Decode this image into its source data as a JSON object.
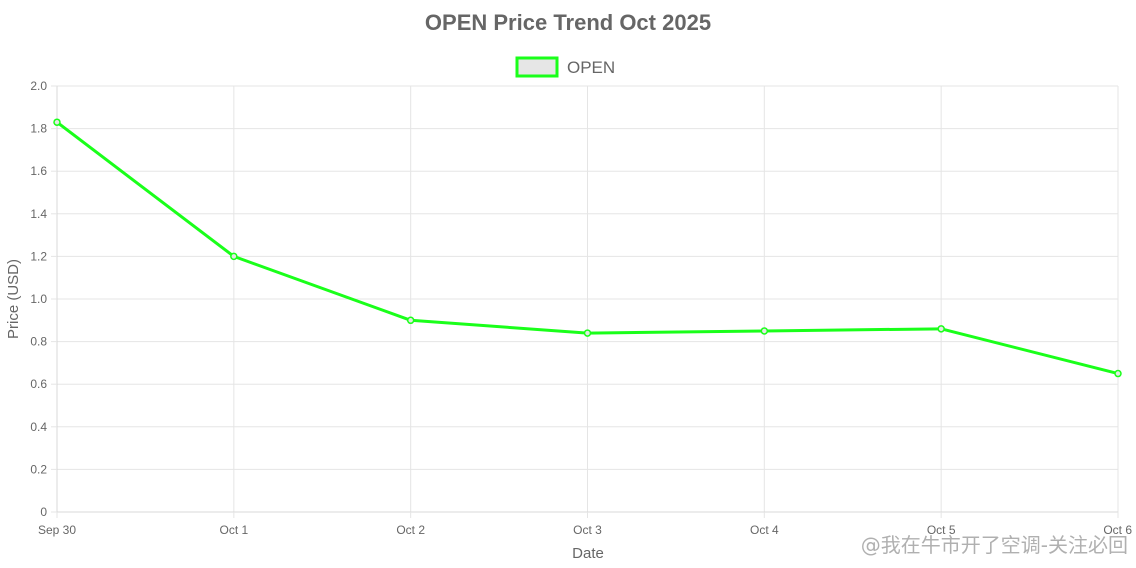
{
  "chart_data": {
    "type": "line",
    "title": "OPEN Price Trend Oct 2025",
    "xlabel": "Date",
    "ylabel": "Price (USD)",
    "categories": [
      "Sep 30",
      "Oct 1",
      "Oct 2",
      "Oct 3",
      "Oct 4",
      "Oct 5",
      "Oct 6"
    ],
    "series": [
      {
        "name": "OPEN",
        "values": [
          1.83,
          1.2,
          0.9,
          0.84,
          0.85,
          0.86,
          0.65
        ]
      }
    ],
    "ylim": [
      0,
      2.0
    ],
    "yticks": [
      "0",
      "0.2",
      "0.4",
      "0.6",
      "0.8",
      "1.0",
      "1.2",
      "1.4",
      "1.6",
      "1.8",
      "2.0"
    ],
    "grid": true,
    "legend_position": "top-center",
    "colors": {
      "line": "#1aff1a",
      "legend_fill": "#e6e6e6",
      "grid": "#e5e5e5",
      "text": "#666666"
    }
  },
  "watermark": "@我在牛市开了空调-关注必回"
}
